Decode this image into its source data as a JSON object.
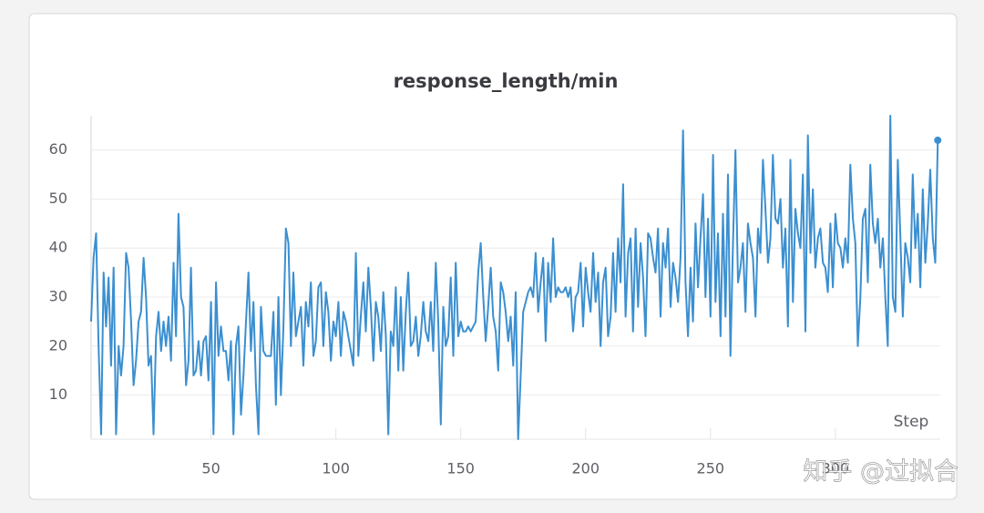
{
  "chart_data": {
    "type": "line",
    "title": "response_length/min",
    "x_label": "Step",
    "watermark": "知乎 @过拟合",
    "xlim": [
      2,
      342
    ],
    "xticks": [
      50,
      100,
      150,
      200,
      250,
      300
    ],
    "ylim": [
      1,
      67
    ],
    "yticks": [
      10,
      20,
      30,
      40,
      50,
      60
    ],
    "grid": true,
    "x": [
      2,
      3,
      4,
      5,
      6,
      7,
      8,
      9,
      10,
      11,
      12,
      13,
      14,
      15,
      16,
      17,
      18,
      19,
      20,
      21,
      22,
      23,
      24,
      25,
      26,
      27,
      28,
      29,
      30,
      31,
      32,
      33,
      34,
      35,
      36,
      37,
      38,
      39,
      40,
      41,
      42,
      43,
      44,
      45,
      46,
      47,
      48,
      49,
      50,
      51,
      52,
      53,
      54,
      55,
      56,
      57,
      58,
      59,
      60,
      61,
      62,
      63,
      64,
      65,
      66,
      67,
      68,
      69,
      70,
      71,
      72,
      73,
      74,
      75,
      76,
      77,
      78,
      79,
      80,
      81,
      82,
      83,
      84,
      85,
      86,
      87,
      88,
      89,
      90,
      91,
      92,
      93,
      94,
      95,
      96,
      97,
      98,
      99,
      100,
      101,
      102,
      103,
      104,
      105,
      106,
      107,
      108,
      109,
      110,
      111,
      112,
      113,
      114,
      115,
      116,
      117,
      118,
      119,
      120,
      121,
      122,
      123,
      124,
      125,
      126,
      127,
      128,
      129,
      130,
      131,
      132,
      133,
      134,
      135,
      136,
      137,
      138,
      139,
      140,
      141,
      142,
      143,
      144,
      145,
      146,
      147,
      148,
      149,
      150,
      151,
      152,
      153,
      154,
      155,
      156,
      157,
      158,
      159,
      160,
      161,
      162,
      163,
      164,
      165,
      166,
      167,
      168,
      169,
      170,
      171,
      172,
      173,
      174,
      175,
      176,
      177,
      178,
      179,
      180,
      181,
      182,
      183,
      184,
      185,
      186,
      187,
      188,
      189,
      190,
      191,
      192,
      193,
      194,
      195,
      196,
      197,
      198,
      199,
      200,
      201,
      202,
      203,
      204,
      205,
      206,
      207,
      208,
      209,
      210,
      211,
      212,
      213,
      214,
      215,
      216,
      217,
      218,
      219,
      220,
      221,
      222,
      223,
      224,
      225,
      226,
      227,
      228,
      229,
      230,
      231,
      232,
      233,
      234,
      235,
      236,
      237,
      238,
      239,
      240,
      241,
      242,
      243,
      244,
      245,
      246,
      247,
      248,
      249,
      250,
      251,
      252,
      253,
      254,
      255,
      256,
      257,
      258,
      259,
      260,
      261,
      262,
      263,
      264,
      265,
      266,
      267,
      268,
      269,
      270,
      271,
      272,
      273,
      274,
      275,
      276,
      277,
      278,
      279,
      280,
      281,
      282,
      283,
      284,
      285,
      286,
      287,
      288,
      289,
      290,
      291,
      292,
      293,
      294,
      295,
      296,
      297,
      298,
      299,
      300,
      301,
      302,
      303,
      304,
      305,
      306,
      307,
      308,
      309,
      310,
      311,
      312,
      313,
      314,
      315,
      316,
      317,
      318,
      319,
      320,
      321,
      322,
      323,
      324,
      325,
      326,
      327,
      328,
      329,
      330,
      331,
      332,
      333,
      334,
      335,
      336,
      337,
      338,
      339,
      340,
      341
    ],
    "series": [
      {
        "name": "response_length/min",
        "color": "#3b8fd0",
        "values": [
          25,
          38,
          43,
          20,
          2,
          35,
          24,
          34,
          16,
          36,
          2,
          20,
          14,
          20,
          39,
          36,
          25,
          12,
          17,
          25,
          27,
          38,
          30,
          16,
          18,
          2,
          22,
          27,
          19,
          25,
          20,
          26,
          17,
          37,
          22,
          47,
          30,
          28,
          12,
          17,
          36,
          14,
          15,
          21,
          14,
          21,
          22,
          13,
          29,
          2,
          33,
          18,
          24,
          19,
          19,
          13,
          21,
          2,
          20,
          24,
          6,
          14,
          25,
          35,
          19,
          29,
          12,
          2,
          28,
          19,
          18,
          18,
          18,
          27,
          8,
          30,
          10,
          24,
          44,
          41,
          20,
          35,
          22,
          25,
          28,
          16,
          29,
          24,
          33,
          18,
          21,
          32,
          33,
          20,
          31,
          27,
          17,
          25,
          22,
          29,
          18,
          27,
          25,
          22,
          19,
          16,
          39,
          18,
          26,
          33,
          23,
          36,
          28,
          17,
          29,
          26,
          19,
          31,
          22,
          2,
          23,
          20,
          32,
          15,
          30,
          15,
          27,
          35,
          20,
          21,
          26,
          18,
          22,
          29,
          23,
          21,
          29,
          19,
          37,
          25,
          4,
          28,
          20,
          22,
          34,
          18,
          37,
          22,
          25,
          23,
          23,
          24,
          23,
          24,
          25,
          35,
          41,
          30,
          21,
          28,
          36,
          26,
          23,
          15,
          33,
          31,
          27,
          21,
          26,
          16,
          31,
          1,
          14,
          27,
          29,
          31,
          32,
          30,
          39,
          27,
          33,
          38,
          21,
          37,
          29,
          42,
          30,
          32,
          31,
          31,
          32,
          30,
          32,
          23,
          30,
          31,
          37,
          24,
          36,
          31,
          27,
          39,
          29,
          35,
          20,
          33,
          36,
          22,
          26,
          39,
          27,
          42,
          33,
          53,
          26,
          39,
          42,
          23,
          44,
          28,
          41,
          34,
          22,
          43,
          42,
          38,
          35,
          44,
          26,
          41,
          36,
          44,
          28,
          37,
          34,
          29,
          38,
          64,
          33,
          22,
          36,
          25,
          45,
          32,
          42,
          51,
          30,
          46,
          26,
          59,
          29,
          43,
          22,
          47,
          26,
          55,
          18,
          41,
          60,
          33,
          36,
          41,
          27,
          45,
          41,
          38,
          26,
          44,
          39,
          58,
          48,
          37,
          42,
          59,
          46,
          45,
          50,
          36,
          44,
          24,
          58,
          29,
          48,
          43,
          40,
          55,
          23,
          63,
          39,
          52,
          36,
          42,
          44,
          37,
          36,
          31,
          45,
          32,
          47,
          41,
          40,
          36,
          42,
          37,
          57,
          46,
          41,
          20,
          30,
          46,
          48,
          33,
          57,
          45,
          41,
          46,
          36,
          42,
          30,
          20,
          67,
          30,
          27,
          58,
          43,
          26,
          41,
          38,
          33,
          55,
          40,
          47,
          32,
          52,
          37,
          45,
          56,
          42,
          37,
          62
        ]
      }
    ]
  }
}
